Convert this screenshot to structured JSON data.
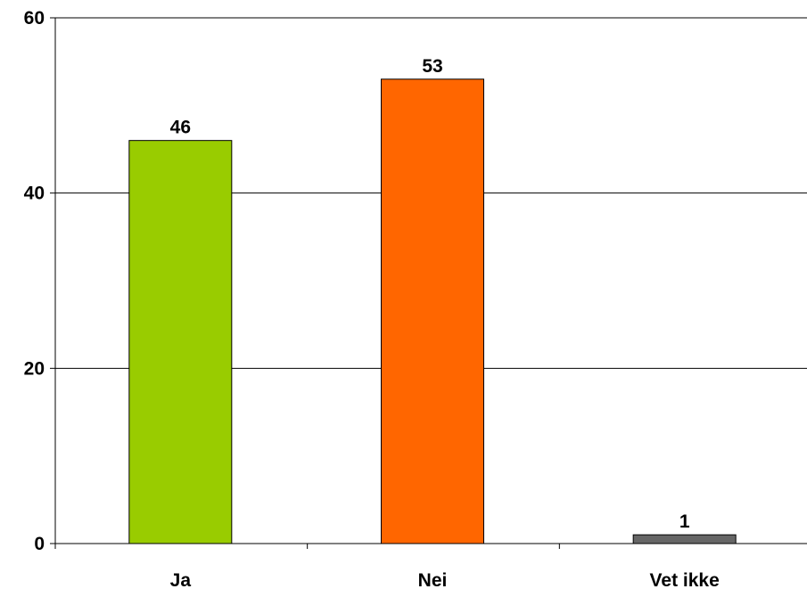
{
  "chart_data": {
    "type": "bar",
    "title": "",
    "xlabel": "",
    "ylabel": "",
    "categories": [
      "Ja",
      "Nei",
      "Vet ikke"
    ],
    "values": [
      46,
      53,
      1
    ],
    "data_labels": [
      "46",
      "53",
      "1"
    ],
    "bar_colors": [
      "#99CC00",
      "#FF6600",
      "#666666"
    ],
    "ylim": [
      0,
      60
    ],
    "yticks": [
      0,
      20,
      40,
      60
    ],
    "ytick_labels": [
      "0",
      "20",
      "40",
      "60"
    ],
    "grid": true,
    "legend": "none"
  }
}
